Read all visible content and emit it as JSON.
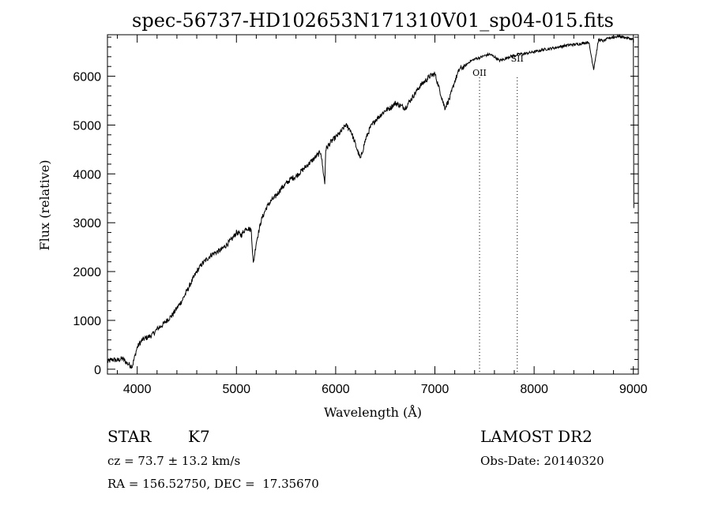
{
  "chart_data": {
    "type": "line",
    "title": "spec-56737-HD102653N171310V01_sp04-015.fits",
    "xlabel": "Wavelength (Å)",
    "ylabel": "Flux (relative)",
    "xlim": [
      3700,
      9050
    ],
    "ylim": [
      -100,
      6850
    ],
    "xticks": [
      4000,
      5000,
      6000,
      7000,
      8000,
      9000
    ],
    "yticks": [
      0,
      1000,
      2000,
      3000,
      4000,
      5000,
      6000
    ],
    "grid": false,
    "legend": "none",
    "series": [
      {
        "color": "#000000",
        "x": [
          3700,
          3750,
          3800,
          3850,
          3900,
          3950,
          4000,
          4050,
          4100,
          4150,
          4200,
          4250,
          4300,
          4350,
          4400,
          4450,
          4500,
          4550,
          4600,
          4650,
          4700,
          4750,
          4800,
          4850,
          4900,
          4950,
          5000,
          5050,
          5100,
          5150,
          5170,
          5200,
          5250,
          5300,
          5350,
          5400,
          5450,
          5500,
          5550,
          5600,
          5650,
          5700,
          5750,
          5800,
          5850,
          5890,
          5900,
          5950,
          6000,
          6050,
          6100,
          6150,
          6200,
          6250,
          6300,
          6350,
          6400,
          6450,
          6500,
          6550,
          6600,
          6650,
          6700,
          6750,
          6800,
          6850,
          6900,
          6950,
          7000,
          7050,
          7100,
          7150,
          7200,
          7250,
          7300,
          7350,
          7400,
          7450,
          7500,
          7550,
          7600,
          7650,
          7700,
          7750,
          7800,
          7850,
          7900,
          7950,
          8000,
          8050,
          8100,
          8150,
          8200,
          8250,
          8300,
          8350,
          8400,
          8450,
          8500,
          8550,
          8600,
          8650,
          8700,
          8750,
          8800,
          8850,
          8900,
          8950,
          9000,
          9005
        ],
        "values": [
          150,
          200,
          180,
          220,
          120,
          60,
          450,
          600,
          650,
          700,
          820,
          900,
          1000,
          1100,
          1250,
          1400,
          1600,
          1800,
          2000,
          2150,
          2250,
          2350,
          2400,
          2450,
          2550,
          2650,
          2800,
          2750,
          2900,
          2850,
          2150,
          2600,
          3050,
          3300,
          3450,
          3550,
          3700,
          3800,
          3900,
          3950,
          4050,
          4150,
          4250,
          4350,
          4450,
          3800,
          4500,
          4650,
          4750,
          4850,
          5000,
          4900,
          4600,
          4300,
          4700,
          4950,
          5100,
          5200,
          5300,
          5350,
          5450,
          5400,
          5350,
          5500,
          5650,
          5800,
          5900,
          6000,
          6050,
          5700,
          5350,
          5550,
          5900,
          6150,
          6200,
          6300,
          6350,
          6380,
          6420,
          6450,
          6400,
          6320,
          6350,
          6400,
          6420,
          6450,
          6460,
          6480,
          6500,
          6520,
          6550,
          6560,
          6580,
          6600,
          6620,
          6640,
          6650,
          6660,
          6680,
          6700,
          6150,
          6750,
          6720,
          6780,
          6800,
          6820,
          6800,
          6780,
          6750,
          3300
        ]
      }
    ],
    "annotations": [
      {
        "label": "OII",
        "x": 7450
      },
      {
        "label": "SII",
        "x": 7830
      }
    ]
  },
  "footer": {
    "class_label": "STAR",
    "subclass": "K7",
    "survey": "LAMOST DR2",
    "redshift": "cz = 73.7 ± 13.2 km/s",
    "obs_date": "Obs-Date: 20140320",
    "coords": "RA = 156.52750, DEC =  17.35670"
  }
}
